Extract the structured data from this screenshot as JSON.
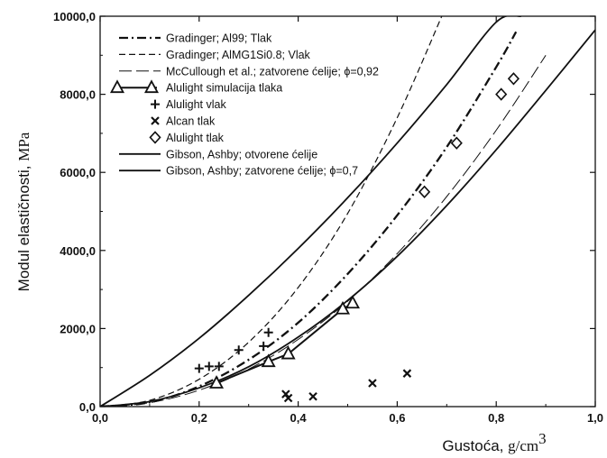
{
  "chart_data": {
    "type": "scatter",
    "title": "",
    "xlabel": "Gustoća,",
    "xlabel_unit": "g/cm",
    "xlabel_unit_sup": "3",
    "ylabel": "Modul elastičnosti,",
    "ylabel_unit": "MPa",
    "xlim": [
      0.0,
      1.0
    ],
    "ylim": [
      0.0,
      10000.0
    ],
    "x_ticks": [
      "0,0",
      "0,2",
      "0,4",
      "0,6",
      "0,8",
      "1,0"
    ],
    "x_tick_values": [
      0.0,
      0.2,
      0.4,
      0.6,
      0.8,
      1.0
    ],
    "y_ticks": [
      "0,0",
      "2000,0",
      "4000,0",
      "6000,0",
      "8000,0",
      "10000,0"
    ],
    "y_tick_values": [
      0,
      2000,
      4000,
      6000,
      8000,
      10000
    ],
    "grid": false,
    "legend_position": "top-left",
    "series": [
      {
        "name": "Gradinger; Al99; Tlak",
        "style": "dashdot",
        "x": [
          0.0,
          0.1,
          0.2,
          0.3,
          0.4,
          0.5,
          0.6,
          0.7,
          0.8,
          0.84
        ],
        "y": [
          0,
          110,
          520,
          1200,
          2150,
          3400,
          4900,
          6650,
          8700,
          9600
        ]
      },
      {
        "name": "Gradinger; AlMG1Si0.8; Vlak",
        "style": "dash",
        "x": [
          0.0,
          0.1,
          0.2,
          0.3,
          0.4,
          0.5,
          0.6,
          0.69
        ],
        "y": [
          0,
          160,
          700,
          1650,
          3050,
          4950,
          7400,
          10000
        ]
      },
      {
        "name": "McCullough et al.; zatvorene ćelije; ϕ=0,92",
        "style": "longdash",
        "x": [
          0.0,
          0.1,
          0.2,
          0.3,
          0.4,
          0.5,
          0.6,
          0.7,
          0.8,
          0.9
        ],
        "y": [
          0,
          100,
          420,
          960,
          1720,
          2700,
          3920,
          5380,
          7080,
          9000
        ]
      },
      {
        "name": "Alulight simulacija tlaka",
        "style": "triangle-line",
        "x": [
          0.235,
          0.34,
          0.38,
          0.49,
          0.51
        ],
        "y": [
          600,
          1150,
          1350,
          2500,
          2650
        ]
      },
      {
        "name": "Alulight vlak",
        "style": "plus",
        "x": [
          0.2,
          0.22,
          0.24,
          0.28,
          0.33,
          0.34
        ],
        "y": [
          980,
          1030,
          1030,
          1450,
          1550,
          1900
        ]
      },
      {
        "name": "Alcan tlak",
        "style": "cross",
        "x": [
          0.375,
          0.38,
          0.43,
          0.55,
          0.62
        ],
        "y": [
          320,
          220,
          260,
          600,
          850
        ]
      },
      {
        "name": "Alulight tlak",
        "style": "diamond",
        "x": [
          0.655,
          0.72,
          0.81,
          0.835
        ],
        "y": [
          5500,
          6750,
          8000,
          8400
        ]
      },
      {
        "name": "Gibson, Ashby; otvorene ćelije",
        "style": "solid",
        "x": [
          0.0,
          0.1,
          0.2,
          0.3,
          0.4,
          0.5,
          0.6,
          0.7,
          0.8,
          0.85
        ],
        "y": [
          0,
          800,
          1750,
          2850,
          4050,
          5350,
          6750,
          8250,
          9850,
          10000
        ]
      },
      {
        "name": "Gibson, Ashby; zatvorene ćelije; ϕ=0,7",
        "style": "solid",
        "x": [
          0.0,
          0.1,
          0.2,
          0.3,
          0.4,
          0.5,
          0.6,
          0.7,
          0.8,
          0.9,
          1.0
        ],
        "y": [
          0,
          130,
          480,
          1020,
          1780,
          2720,
          3850,
          5150,
          6580,
          8100,
          9650
        ]
      }
    ]
  }
}
